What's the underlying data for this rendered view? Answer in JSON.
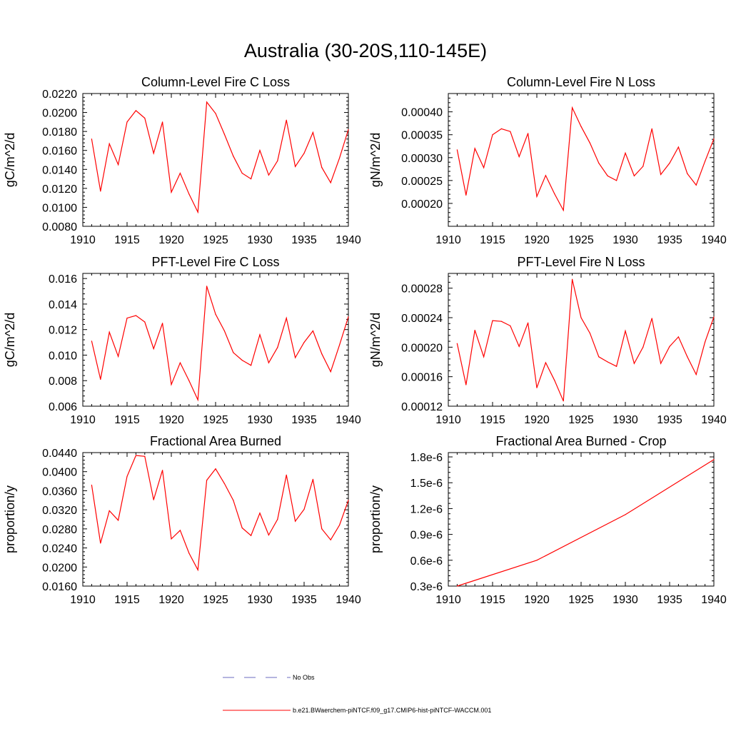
{
  "page": {
    "title": "Australia (30-20S,110-145E)"
  },
  "colors": {
    "model_line": "#ff0000",
    "obs_line": "#6b6bbf",
    "axis": "#000000"
  },
  "legend": {
    "obs_label": "No Obs",
    "model_label": "b.e21.BWaerchem-piNTCF.f09_g17.CMIP6-hist-piNTCF-WACCM.001"
  },
  "chart_data": [
    {
      "type": "line",
      "title": "Column-Level Fire C Loss",
      "ylabel": "gC/m^2/d",
      "xlim": [
        1910,
        1940
      ],
      "ylim": [
        0.008,
        0.022
      ],
      "x_ticks": [
        "1910",
        "1915",
        "1920",
        "1925",
        "1930",
        "1935",
        "1940"
      ],
      "y_ticks": [
        "0.0080",
        "0.0100",
        "0.0120",
        "0.0140",
        "0.0160",
        "0.0180",
        "0.0200",
        "0.0220"
      ],
      "x": [
        1911,
        1912,
        1913,
        1914,
        1915,
        1916,
        1917,
        1918,
        1919,
        1920,
        1921,
        1922,
        1923,
        1924,
        1925,
        1926,
        1927,
        1928,
        1929,
        1930,
        1931,
        1932,
        1933,
        1934,
        1935,
        1936,
        1937,
        1938,
        1939,
        1940
      ],
      "values": [
        0.0172,
        0.0117,
        0.0167,
        0.0145,
        0.019,
        0.0202,
        0.0194,
        0.0157,
        0.019,
        0.0116,
        0.0136,
        0.0114,
        0.0095,
        0.0211,
        0.0199,
        0.0177,
        0.0154,
        0.0136,
        0.013,
        0.016,
        0.0134,
        0.0149,
        0.0192,
        0.0143,
        0.0157,
        0.0179,
        0.0142,
        0.0126,
        0.0152,
        0.0182
      ]
    },
    {
      "type": "line",
      "title": "Column-Level Fire N Loss",
      "ylabel": "gN/m^2/d",
      "xlim": [
        1910,
        1940
      ],
      "ylim": [
        0.00015,
        0.00044
      ],
      "x_ticks": [
        "1910",
        "1915",
        "1920",
        "1925",
        "1930",
        "1935",
        "1940"
      ],
      "y_ticks": [
        "0.00020",
        "0.00025",
        "0.00030",
        "0.00035",
        "0.00040"
      ],
      "x": [
        1911,
        1912,
        1913,
        1914,
        1915,
        1916,
        1917,
        1918,
        1919,
        1920,
        1921,
        1922,
        1923,
        1924,
        1925,
        1926,
        1927,
        1928,
        1929,
        1930,
        1931,
        1932,
        1933,
        1934,
        1935,
        1936,
        1937,
        1938,
        1939,
        1940
      ],
      "values": [
        0.000317,
        0.000218,
        0.00032,
        0.000278,
        0.00035,
        0.000363,
        0.000357,
        0.000302,
        0.000353,
        0.000215,
        0.000261,
        0.000221,
        0.000185,
        0.000409,
        0.000368,
        0.000332,
        0.000288,
        0.00026,
        0.00025,
        0.00031,
        0.00026,
        0.000281,
        0.000363,
        0.000263,
        0.000288,
        0.000323,
        0.000265,
        0.00024,
        0.000292,
        0.000341
      ]
    },
    {
      "type": "line",
      "title": "PFT-Level Fire C Loss",
      "ylabel": "gC/m^2/d",
      "xlim": [
        1910,
        1940
      ],
      "ylim": [
        0.006,
        0.0164
      ],
      "x_ticks": [
        "1910",
        "1915",
        "1920",
        "1925",
        "1930",
        "1935",
        "1940"
      ],
      "y_ticks": [
        "0.006",
        "0.008",
        "0.010",
        "0.012",
        "0.014",
        "0.016"
      ],
      "x": [
        1911,
        1912,
        1913,
        1914,
        1915,
        1916,
        1917,
        1918,
        1919,
        1920,
        1921,
        1922,
        1923,
        1924,
        1925,
        1926,
        1927,
        1928,
        1929,
        1930,
        1931,
        1932,
        1933,
        1934,
        1935,
        1936,
        1937,
        1938,
        1939,
        1940
      ],
      "values": [
        0.0111,
        0.0081,
        0.0118,
        0.0099,
        0.0129,
        0.0131,
        0.0126,
        0.0105,
        0.0125,
        0.0077,
        0.0094,
        0.008,
        0.0065,
        0.0154,
        0.0132,
        0.0119,
        0.0102,
        0.0096,
        0.0092,
        0.0116,
        0.0094,
        0.0106,
        0.0129,
        0.0098,
        0.011,
        0.0119,
        0.0101,
        0.0087,
        0.0108,
        0.013
      ]
    },
    {
      "type": "line",
      "title": "PFT-Level Fire N Loss",
      "ylabel": "gN/m^2/d",
      "xlim": [
        1910,
        1940
      ],
      "ylim": [
        0.00012,
        0.0003
      ],
      "x_ticks": [
        "1910",
        "1915",
        "1920",
        "1925",
        "1930",
        "1935",
        "1940"
      ],
      "y_ticks": [
        "0.00012",
        "0.00016",
        "0.00020",
        "0.00024",
        "0.00028"
      ],
      "x": [
        1911,
        1912,
        1913,
        1914,
        1915,
        1916,
        1917,
        1918,
        1919,
        1920,
        1921,
        1922,
        1923,
        1924,
        1925,
        1926,
        1927,
        1928,
        1929,
        1930,
        1931,
        1932,
        1933,
        1934,
        1935,
        1936,
        1937,
        1938,
        1939,
        1940
      ],
      "values": [
        0.000205,
        0.000149,
        0.000223,
        0.000187,
        0.000236,
        0.000235,
        0.000229,
        0.000201,
        0.000233,
        0.000145,
        0.000179,
        0.000155,
        0.000127,
        0.000292,
        0.00024,
        0.000219,
        0.000187,
        0.00018,
        0.000174,
        0.000222,
        0.000178,
        0.0002,
        0.000239,
        0.000178,
        0.000201,
        0.000214,
        0.000187,
        0.000163,
        0.000207,
        0.000241
      ]
    },
    {
      "type": "line",
      "title": "Fractional Area Burned",
      "ylabel": "proportion/y",
      "xlim": [
        1910,
        1940
      ],
      "ylim": [
        0.016,
        0.044
      ],
      "x_ticks": [
        "1910",
        "1915",
        "1920",
        "1925",
        "1930",
        "1935",
        "1940"
      ],
      "y_ticks": [
        "0.0160",
        "0.0200",
        "0.0240",
        "0.0280",
        "0.0320",
        "0.0360",
        "0.0400",
        "0.0440"
      ],
      "x": [
        1911,
        1912,
        1913,
        1914,
        1915,
        1916,
        1917,
        1918,
        1919,
        1920,
        1921,
        1922,
        1923,
        1924,
        1925,
        1926,
        1927,
        1928,
        1929,
        1930,
        1931,
        1932,
        1933,
        1934,
        1935,
        1936,
        1937,
        1938,
        1939,
        1940
      ],
      "values": [
        0.0372,
        0.025,
        0.0318,
        0.0298,
        0.039,
        0.0434,
        0.0432,
        0.0341,
        0.0403,
        0.0259,
        0.0277,
        0.0229,
        0.0194,
        0.0382,
        0.0406,
        0.0375,
        0.034,
        0.0282,
        0.0266,
        0.0313,
        0.0267,
        0.03,
        0.0393,
        0.0296,
        0.0321,
        0.0384,
        0.028,
        0.0257,
        0.0288,
        0.034
      ]
    },
    {
      "type": "line",
      "title": "Fractional Area Burned - Crop",
      "ylabel": "proportion/y",
      "xlim": [
        1910,
        1940
      ],
      "ylim": [
        3e-07,
        1.85e-06
      ],
      "x_ticks": [
        "1910",
        "1915",
        "1920",
        "1925",
        "1930",
        "1935",
        "1940"
      ],
      "y_ticks": [
        "0.3e-6",
        "0.6e-6",
        "0.9e-6",
        "1.2e-6",
        "1.5e-6",
        "1.8e-6"
      ],
      "x": [
        1911,
        1920,
        1930,
        1940
      ],
      "values": [
        3e-07,
        6e-07,
        1.13e-06,
        1.77e-06
      ]
    }
  ]
}
